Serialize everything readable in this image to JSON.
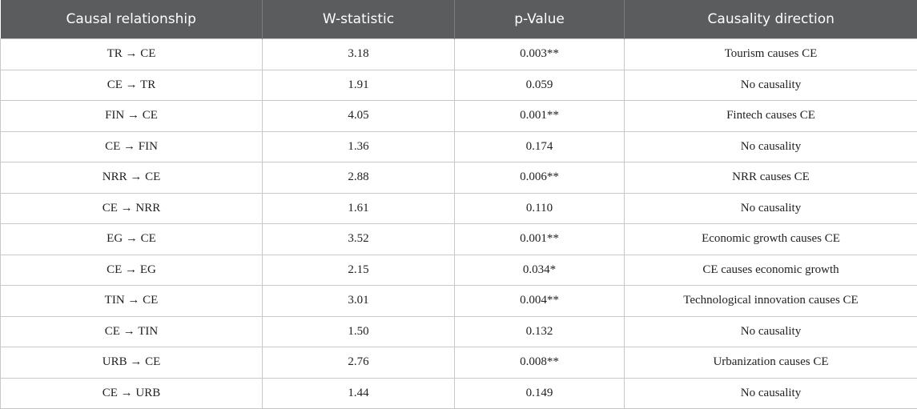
{
  "table": {
    "header": [
      "Causal relationship",
      "W-statistic",
      "p-Value",
      "Causality direction"
    ],
    "rows": [
      [
        "TR → CE",
        "3.18",
        "0.003**",
        "Tourism causes CE"
      ],
      [
        "CE → TR",
        "1.91",
        "0.059",
        "No causality"
      ],
      [
        "FIN → CE",
        "4.05",
        "0.001**",
        "Fintech causes CE"
      ],
      [
        "CE → FIN",
        "1.36",
        "0.174",
        "No causality"
      ],
      [
        "NRR → CE",
        "2.88",
        "0.006**",
        "NRR causes CE"
      ],
      [
        "CE → NRR",
        "1.61",
        "0.110",
        "No causality"
      ],
      [
        "EG → CE",
        "3.52",
        "0.001**",
        "Economic growth causes CE"
      ],
      [
        "CE → EG",
        "2.15",
        "0.034*",
        "CE causes economic growth"
      ],
      [
        "TIN → CE",
        "3.01",
        "0.004**",
        "Technological innovation causes CE"
      ],
      [
        "CE → TIN",
        "1.50",
        "0.132",
        "No causality"
      ],
      [
        "URB → CE",
        "2.76",
        "0.008**",
        "Urbanization causes CE"
      ],
      [
        "CE → URB",
        "1.44",
        "0.149",
        "No causality"
      ]
    ]
  }
}
